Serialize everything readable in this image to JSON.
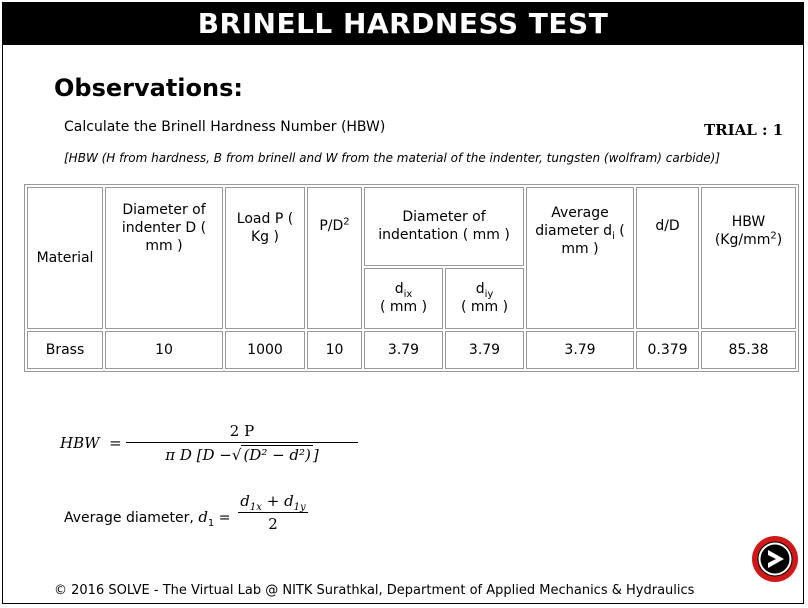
{
  "title": "BRINELL HARDNESS TEST",
  "heading": "Observations:",
  "instruction": "Calculate the Brinell Hardness Number (HBW)",
  "trial": "TRIAL : 1",
  "note": "[HBW (H from hardness, B from brinell and W from the material of the indenter, tungsten (wolfram) carbide)]",
  "table": {
    "headers": {
      "material": "Material",
      "diameter_indenter": "Diameter of indenter D ( mm )",
      "load": "Load P ( Kg )",
      "pd2": "P/D",
      "pd2_sup": "2",
      "diameter_indentation": "Diameter of indentation ( mm )",
      "avg_diameter": "Average diameter d",
      "avg_diameter_sub": "i",
      "avg_diameter_unit": "( mm )",
      "dD": "d/D",
      "hbw": "HBW (Kg/mm",
      "hbw_sup": "2",
      "hbw_close": ")",
      "dix": "d",
      "dix_sub": "ix",
      "diy": "d",
      "diy_sub": "iy",
      "mm": "( mm )"
    },
    "rows": [
      {
        "material": "Brass",
        "D": "10",
        "P": "1000",
        "PD2": "10",
        "dix": "3.79",
        "diy": "3.79",
        "avg": "3.79",
        "dD": "0.379",
        "hbw": "85.38"
      }
    ]
  },
  "formula1": {
    "lhs": "HBW",
    "eq": "=",
    "numerator": "2 P",
    "den_a": "π D [D −",
    "den_sqrt": "(D² − d²)",
    "den_b": "]"
  },
  "formula2": {
    "label": "Average diameter,",
    "lhs": "d",
    "lhs_sub": "1",
    "eq": "=",
    "num_a": "d",
    "num_a_sub": "1x",
    "plus": "+",
    "num_b": "d",
    "num_b_sub": "1y",
    "denominator": "2"
  },
  "next_icon": "next-arrow-icon",
  "footer": "© 2016 SOLVE - The Virtual Lab @ NITK Surathkal, Department of Applied Mechanics & Hydraulics",
  "colors": {
    "title_bg": "#000000",
    "button": "#d01818"
  }
}
